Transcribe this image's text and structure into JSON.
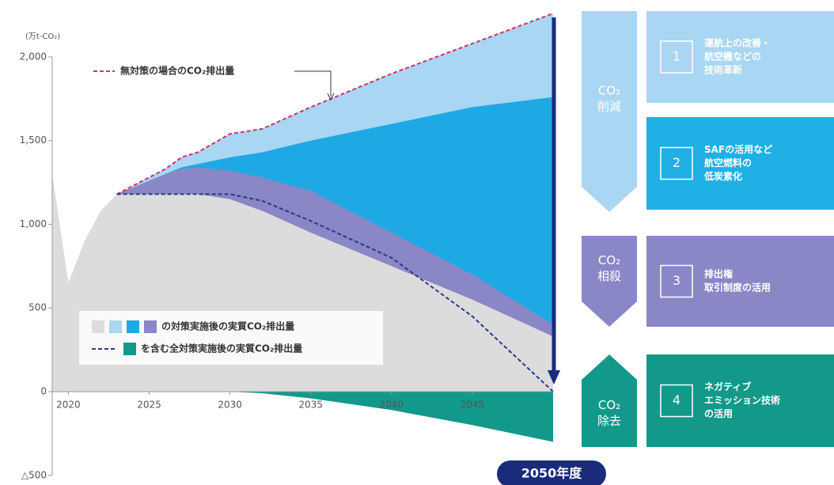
{
  "chart_data": {
    "type": "area",
    "y_unit_label": "(万t-CO₂)",
    "x": [
      2019,
      2020,
      2021,
      2022,
      2023,
      2025,
      2026,
      2027,
      2028,
      2030,
      2032,
      2035,
      2040,
      2045,
      2050
    ],
    "xlim": [
      2019,
      2050
    ],
    "xticks": [
      2020,
      2025,
      2030,
      2035,
      2040,
      2045
    ],
    "ylim": [
      -500,
      2300
    ],
    "yticks": [
      {
        "value": -500,
        "label": "△500"
      },
      0,
      500,
      {
        "value": 1000,
        "label": "1,000"
      },
      {
        "value": 1500,
        "label": "1,500"
      },
      {
        "value": 2000,
        "label": "2,000"
      }
    ],
    "series": [
      {
        "name": "無対策の場合のCO₂排出量",
        "color": "#c7356f",
        "fill": "#a9d6f2",
        "dash": true,
        "values": [
          null,
          null,
          null,
          null,
          1180,
          1280,
          1330,
          1400,
          1430,
          1540,
          1570,
          1700,
          1900,
          2080,
          2260
        ]
      },
      {
        "fill": "#1fa9e4",
        "values": [
          null,
          null,
          null,
          null,
          1180,
          1260,
          1300,
          1340,
          1360,
          1400,
          1430,
          1500,
          1600,
          1700,
          1760
        ]
      },
      {
        "fill": "#8a87c6",
        "values": [
          null,
          null,
          null,
          null,
          1180,
          1260,
          1300,
          1330,
          1340,
          1320,
          1280,
          1200,
          950,
          700,
          400
        ]
      },
      {
        "fill": "#dcdcdc",
        "values": [
          1300,
          650,
          900,
          1080,
          1180,
          1180,
          1180,
          1180,
          1180,
          1150,
          1080,
          950,
          750,
          550,
          330
        ]
      },
      {
        "fill": "#12998a",
        "values": [
          null,
          null,
          null,
          null,
          null,
          null,
          null,
          null,
          null,
          0,
          -10,
          -40,
          -110,
          -200,
          -300
        ]
      },
      {
        "name": "を含む全対策実施後の実質CO₂排出量",
        "color": "#283a8c",
        "dash": true,
        "values": [
          null,
          null,
          null,
          null,
          1180,
          1180,
          1180,
          1180,
          1180,
          1180,
          1140,
          1020,
          800,
          450,
          0
        ]
      }
    ],
    "legend": [
      {
        "text": "の対策実施後の実質CO₂排出量",
        "swatches": [
          "#dcdcdc",
          "#a9d6f2",
          "#1fa9e4",
          "#8a87c6"
        ]
      },
      {
        "text": "を含む全対策実施後の実質CO₂排出量",
        "line": "#283a8c",
        "swatches": [
          "#12998a"
        ]
      }
    ],
    "target_label": "2050年度"
  },
  "panel": {
    "groups": [
      {
        "label": [
          "CO₂",
          "削減"
        ],
        "color": "#a9d6f2",
        "items": [
          {
            "number": "1",
            "color": "#a9d6f2",
            "lines": [
              "運航上の改善・",
              "航空機などの",
              "技術革新"
            ]
          },
          {
            "number": "2",
            "color": "#1fb0e6",
            "lines": [
              "SAFの活用など",
              "航空燃料の",
              "低炭素化"
            ]
          }
        ]
      },
      {
        "label": [
          "CO₂",
          "相殺"
        ],
        "color": "#8a87c6",
        "items": [
          {
            "number": "3",
            "color": "#8a87c6",
            "lines": [
              "排出権",
              "取引制度の活用"
            ]
          }
        ]
      },
      {
        "label": [
          "CO₂",
          "除去"
        ],
        "color": "#12998a",
        "items": [
          {
            "number": "4",
            "color": "#12998a",
            "lines": [
              "ネガティブ",
              "エミッション技術",
              "の活用"
            ]
          }
        ]
      }
    ]
  }
}
